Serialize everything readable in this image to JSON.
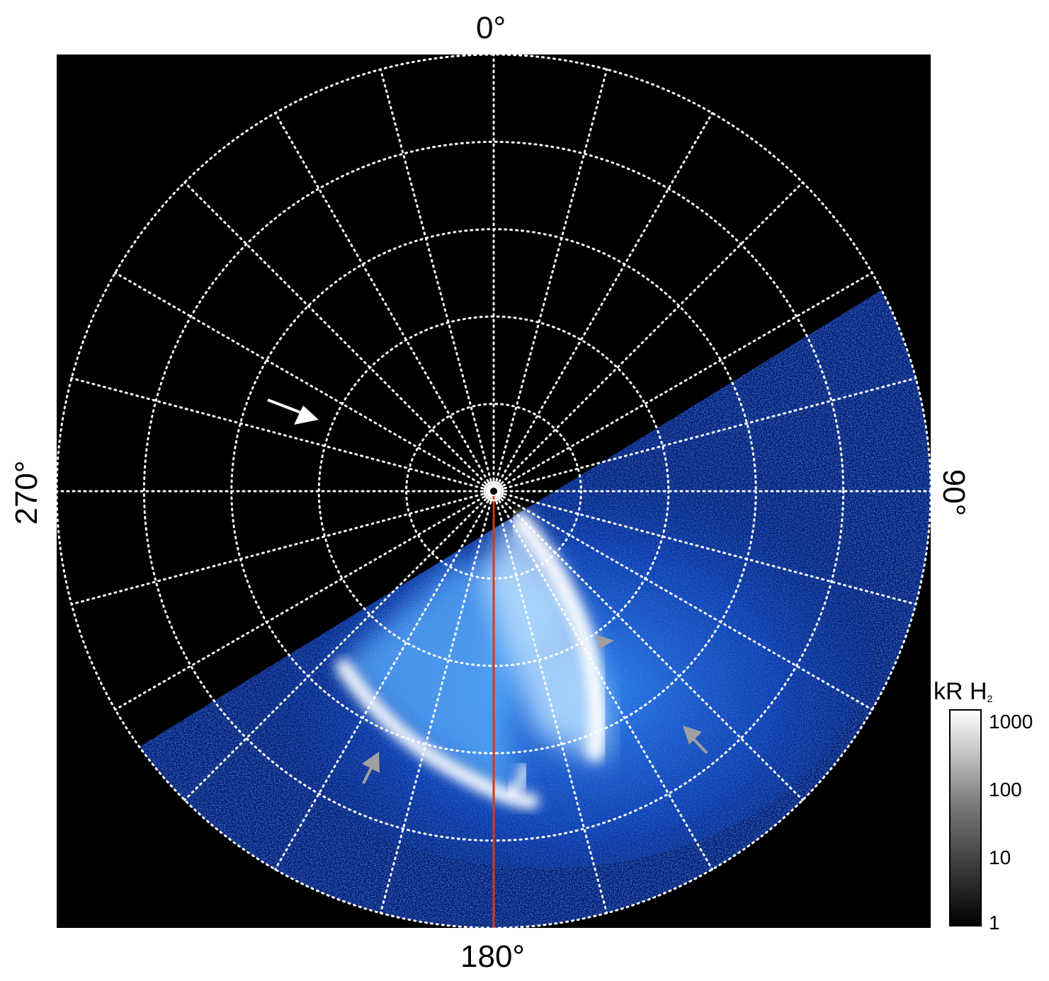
{
  "axis_labels": {
    "top": "0°",
    "right": "90°",
    "bottom": "180°",
    "left": "270°"
  },
  "colorbar": {
    "title_main": "kR H",
    "title_sub": "2",
    "ticks": [
      "1000",
      "100",
      "10",
      "1"
    ]
  },
  "colors": {
    "background": "#000000",
    "grid": "#ffffff",
    "aurora_low": "#0a3fd0",
    "aurora_mid": "#2f8cff",
    "aurora_high": "#ffffff",
    "meridian_line": "#d43a1a",
    "arrow_white": "#ffffff",
    "arrow_grey": "#a0a0a0"
  },
  "grid": {
    "longitude_step_deg": 15,
    "latitude_rings": 5
  },
  "annotations": {
    "white_arrow": "arrow-white",
    "grey_arrows": [
      "arrow-grey-left",
      "arrow-grey-middle",
      "arrow-grey-right"
    ]
  }
}
